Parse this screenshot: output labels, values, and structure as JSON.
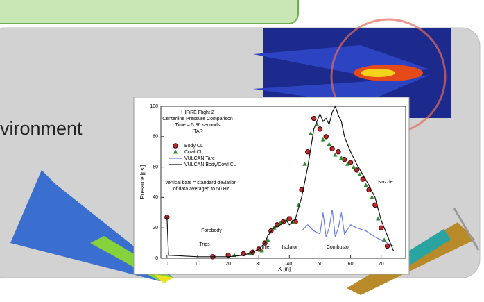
{
  "slide": {
    "text": "vironment"
  },
  "chart_data": {
    "type": "scatter",
    "title": [
      "HIFiRE Flight 2",
      "Centerline Pressure Comparison",
      "Time = 5.86 seconds",
      "ITAR"
    ],
    "x_label": "X [in]",
    "y_label": "Pressure [psi]",
    "annotation": [
      "vertical bars = standard deviation",
      "of data averaged to 50 Hz"
    ],
    "regions": [
      "Forebody",
      "Trips",
      "Inlet",
      "Isolator",
      "Combustor",
      "Nozzle"
    ],
    "xlim": [
      -2,
      78
    ],
    "ylim": [
      0,
      100
    ],
    "xticks": [
      0,
      10,
      20,
      30,
      40,
      50,
      60,
      70
    ],
    "yticks": [
      0,
      20,
      40,
      60,
      80,
      100
    ],
    "series": [
      {
        "name": "Body CL",
        "color": "#c0282d",
        "mode": "circle",
        "x": [
          0,
          15,
          20,
          25,
          28,
          30,
          32,
          34,
          36,
          38,
          40,
          42,
          44,
          46,
          48,
          50,
          52,
          54,
          56,
          58,
          60,
          62,
          64,
          66,
          68,
          70,
          72
        ],
        "values": [
          27,
          1,
          2,
          3,
          4,
          6,
          10,
          18,
          22,
          24,
          26,
          24,
          45,
          70,
          92,
          85,
          80,
          72,
          70,
          65,
          63,
          58,
          52,
          45,
          35,
          20,
          8
        ]
      },
      {
        "name": "Cowl CL",
        "color": "#2e8b2e",
        "mode": "triangle",
        "x": [
          22,
          27,
          31,
          33,
          35,
          37,
          39,
          41,
          43,
          45,
          47,
          49,
          51,
          53,
          55,
          57,
          59,
          61,
          63,
          65,
          67,
          69,
          71
        ],
        "values": [
          2,
          3,
          5,
          12,
          20,
          23,
          25,
          24,
          35,
          62,
          82,
          88,
          78,
          75,
          68,
          66,
          62,
          60,
          55,
          48,
          40,
          26,
          12
        ]
      },
      {
        "name": "VULCAN Tare",
        "color": "#6a7fe0",
        "mode": "line",
        "x": [
          44,
          46,
          48,
          50,
          51,
          52,
          53,
          54,
          55,
          56,
          57,
          58,
          60,
          62,
          65,
          68,
          70,
          72,
          74
        ],
        "values": [
          18,
          22,
          18,
          16,
          30,
          14,
          20,
          32,
          14,
          20,
          30,
          16,
          22,
          20,
          18,
          14,
          12,
          10,
          8
        ]
      },
      {
        "name": "VULCAN Body/Cowl CL",
        "color": "#111111",
        "mode": "line",
        "x": [
          0,
          0.5,
          10,
          20,
          25,
          28,
          30,
          32,
          33,
          35,
          37,
          39,
          40,
          42,
          44,
          46,
          48,
          50,
          51,
          52,
          53,
          54,
          55,
          56,
          57,
          58,
          60,
          62,
          64,
          66,
          68,
          70,
          72,
          73,
          74
        ],
        "values": [
          27,
          2,
          1,
          1,
          2,
          4,
          6,
          10,
          15,
          20,
          22,
          25,
          22,
          26,
          40,
          60,
          85,
          95,
          90,
          92,
          88,
          96,
          100,
          94,
          90,
          80,
          70,
          62,
          55,
          48,
          40,
          25,
          15,
          10,
          5
        ]
      }
    ]
  }
}
